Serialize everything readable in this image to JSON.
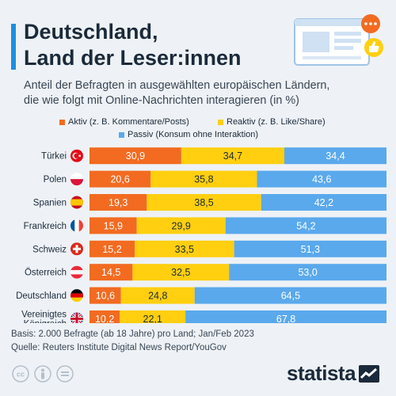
{
  "header": {
    "title_line1": "Deutschland,",
    "title_line2": "Land der Leser:innen",
    "subtitle_line1": "Anteil der Befragten in ausgewählten europäischen Ländern,",
    "subtitle_line2": "die wie folgt mit Online-Nachrichten interagieren (in %)"
  },
  "footer": {
    "basis": "Basis: 2.000 Befragte (ab 18 Jahre) pro Land; Jan/Feb 2023",
    "source": "Quelle: Reuters Institute Digital News Report/YouGov",
    "brand": "statista"
  },
  "colors": {
    "accent": "#1d8fe0",
    "aktiv": "#f26b21",
    "reaktiv": "#ffcf10",
    "passiv": "#5aa9ec"
  },
  "chart_data": {
    "type": "bar",
    "orientation": "horizontal",
    "stacked": true,
    "title": "Deutschland, Land der Leser:innen",
    "categories": [
      "Türkei",
      "Polen",
      "Spanien",
      "Frankreich",
      "Schweiz",
      "Österreich",
      "Deutschland",
      "Vereinigtes Königreich"
    ],
    "category_lines": [
      [
        "Türkei"
      ],
      [
        "Polen"
      ],
      [
        "Spanien"
      ],
      [
        "Frankreich"
      ],
      [
        "Schweiz"
      ],
      [
        "Österreich"
      ],
      [
        "Deutschland"
      ],
      [
        "Vereinigtes",
        "Königreich"
      ]
    ],
    "flags": [
      "flag-turkey-icon",
      "flag-poland-icon",
      "flag-spain-icon",
      "flag-france-icon",
      "flag-switzerland-icon",
      "flag-austria-icon",
      "flag-germany-icon",
      "flag-uk-icon"
    ],
    "xlim": [
      0,
      100
    ],
    "legend_position": "top",
    "series": [
      {
        "name": "Aktiv (z. B. Kommentare/Posts)",
        "color": "#f26b21",
        "values": [
          30.9,
          20.6,
          19.3,
          15.9,
          15.2,
          14.5,
          10.6,
          10.2
        ],
        "labels": [
          "30,9",
          "20,6",
          "19,3",
          "15,9",
          "15,2",
          "14,5",
          "10,6",
          "10,2"
        ]
      },
      {
        "name": "Reaktiv (z. B. Like/Share)",
        "color": "#ffcf10",
        "values": [
          34.7,
          35.8,
          38.5,
          29.9,
          33.5,
          32.5,
          24.8,
          22.1
        ],
        "labels": [
          "34,7",
          "35,8",
          "38,5",
          "29,9",
          "33,5",
          "32,5",
          "24,8",
          "22,1"
        ]
      },
      {
        "name": "Passiv (Konsum ohne Interaktion)",
        "color": "#5aa9ec",
        "values": [
          34.4,
          43.6,
          42.2,
          54.2,
          51.3,
          53.0,
          64.5,
          67.8
        ],
        "labels": [
          "34,4",
          "43,6",
          "42,2",
          "54,2",
          "51,3",
          "53,0",
          "64,5",
          "67,8"
        ]
      }
    ]
  }
}
